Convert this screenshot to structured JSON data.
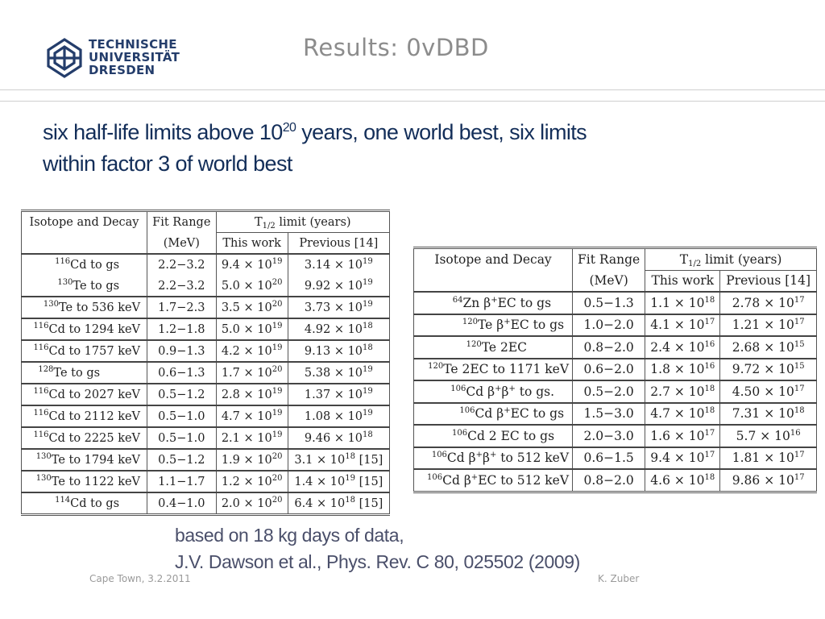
{
  "logo": {
    "lines": [
      "TECHNISCHE",
      "UNIVERSITÄT",
      "DRESDEN"
    ]
  },
  "title": "Results: 0vDBD",
  "headline": {
    "part1": "six half-life limits above 10",
    "exp": "20",
    "part2": " years, one world best, six limits",
    "line2": "within factor 3 of world best"
  },
  "table1": {
    "header": {
      "isotope": "Isotope and Decay",
      "fit": "Fit Range",
      "unit": "(MeV)",
      "limit_pre": "T",
      "limit_sub": "1/2",
      "limit_post": " limit (years)",
      "this": "This work",
      "prev": "Previous [14]"
    },
    "rows": [
      {
        "iso_mass": "116",
        "iso": "Cd to gs",
        "fit": "2.2−3.2",
        "tw_m": "9.4",
        "tw_e": "19",
        "pv_m": "3.14",
        "pv_e": "19",
        "pv_ref": ""
      },
      {
        "iso_mass": "130",
        "iso": "Te to gs",
        "fit": "2.2−3.2",
        "tw_m": "5.0",
        "tw_e": "20",
        "pv_m": "9.92",
        "pv_e": "19",
        "pv_ref": ""
      },
      {
        "iso_mass": "130",
        "iso": "Te to 536 keV",
        "fit": "1.7−2.3",
        "tw_m": "3.5",
        "tw_e": "20",
        "pv_m": "3.73",
        "pv_e": "19",
        "pv_ref": ""
      },
      {
        "iso_mass": "116",
        "iso": "Cd to 1294 keV",
        "fit": "1.2−1.8",
        "tw_m": "5.0",
        "tw_e": "19",
        "pv_m": "4.92",
        "pv_e": "18",
        "pv_ref": ""
      },
      {
        "iso_mass": "116",
        "iso": "Cd to 1757 keV",
        "fit": "0.9−1.3",
        "tw_m": "4.2",
        "tw_e": "19",
        "pv_m": "9.13",
        "pv_e": "18",
        "pv_ref": ""
      },
      {
        "iso_mass": "128",
        "iso": "Te to gs",
        "fit": "0.6−1.3",
        "tw_m": "1.7",
        "tw_e": "20",
        "pv_m": "5.38",
        "pv_e": "19",
        "pv_ref": ""
      },
      {
        "iso_mass": "116",
        "iso": "Cd to 2027 keV",
        "fit": "0.5−1.2",
        "tw_m": "2.8",
        "tw_e": "19",
        "pv_m": "1.37",
        "pv_e": "19",
        "pv_ref": ""
      },
      {
        "iso_mass": "116",
        "iso": "Cd to 2112 keV",
        "fit": "0.5−1.0",
        "tw_m": "4.7",
        "tw_e": "19",
        "pv_m": "1.08",
        "pv_e": "19",
        "pv_ref": ""
      },
      {
        "iso_mass": "116",
        "iso": "Cd to 2225 keV",
        "fit": "0.5−1.0",
        "tw_m": "2.1",
        "tw_e": "19",
        "pv_m": "9.46",
        "pv_e": "18",
        "pv_ref": ""
      },
      {
        "iso_mass": "130",
        "iso": "Te to 1794 keV",
        "fit": "0.5−1.2",
        "tw_m": "1.9",
        "tw_e": "20",
        "pv_m": "3.1",
        "pv_e": "18",
        "pv_ref": " [15]"
      },
      {
        "iso_mass": "130",
        "iso": "Te to 1122 keV",
        "fit": "1.1−1.7",
        "tw_m": "1.2",
        "tw_e": "20",
        "pv_m": "1.4",
        "pv_e": "19",
        "pv_ref": " [15]"
      },
      {
        "iso_mass": "114",
        "iso": "Cd to gs",
        "fit": "0.4−1.0",
        "tw_m": "2.0",
        "tw_e": "20",
        "pv_m": "6.4",
        "pv_e": "18",
        "pv_ref": " [15]"
      }
    ]
  },
  "table2": {
    "header": {
      "isotope": "Isotope and Decay",
      "fit": "Fit Range",
      "unit": "(MeV)",
      "limit_pre": "T",
      "limit_sub": "1/2",
      "limit_post": " limit (years)",
      "this": "This work",
      "prev": "Previous [14]"
    },
    "rows": [
      {
        "iso_mass": "64",
        "iso_pre": "Zn ",
        "iso_beta": "β",
        "iso_sup": "+",
        "iso_beta2": "",
        "iso_sup2": "",
        "iso_post": "EC to gs",
        "fit": "0.5−1.3",
        "tw_m": "1.1",
        "tw_e": "18",
        "pv_m": "2.78",
        "pv_e": "17"
      },
      {
        "iso_mass": "120",
        "iso_pre": "Te ",
        "iso_beta": "β",
        "iso_sup": "+",
        "iso_beta2": "",
        "iso_sup2": "",
        "iso_post": "EC to gs",
        "fit": "1.0−2.0",
        "tw_m": "4.1",
        "tw_e": "17",
        "pv_m": "1.21",
        "pv_e": "17"
      },
      {
        "iso_mass": "120",
        "iso_pre": "Te 2EC",
        "iso_beta": "",
        "iso_sup": "",
        "iso_beta2": "",
        "iso_sup2": "",
        "iso_post": "",
        "fit": "0.8−2.0",
        "tw_m": "2.4",
        "tw_e": "16",
        "pv_m": "2.68",
        "pv_e": "15"
      },
      {
        "iso_mass": "120",
        "iso_pre": "Te 2EC to 1171 keV",
        "iso_beta": "",
        "iso_sup": "",
        "iso_beta2": "",
        "iso_sup2": "",
        "iso_post": "",
        "fit": "0.6−2.0",
        "tw_m": "1.8",
        "tw_e": "16",
        "pv_m": "9.72",
        "pv_e": "15"
      },
      {
        "iso_mass": "106",
        "iso_pre": "Cd ",
        "iso_beta": "β",
        "iso_sup": "+",
        "iso_beta2": "β",
        "iso_sup2": "+",
        "iso_post": " to gs.",
        "fit": "0.5−2.0",
        "tw_m": "2.7",
        "tw_e": "18",
        "pv_m": "4.50",
        "pv_e": "17"
      },
      {
        "iso_mass": "106",
        "iso_pre": "Cd ",
        "iso_beta": "β",
        "iso_sup": "+",
        "iso_beta2": "",
        "iso_sup2": "",
        "iso_post": "EC to gs",
        "fit": "1.5−3.0",
        "tw_m": "4.7",
        "tw_e": "18",
        "pv_m": "7.31",
        "pv_e": "18"
      },
      {
        "iso_mass": "106",
        "iso_pre": "Cd 2 EC to gs",
        "iso_beta": "",
        "iso_sup": "",
        "iso_beta2": "",
        "iso_sup2": "",
        "iso_post": "",
        "fit": "2.0−3.0",
        "tw_m": "1.6",
        "tw_e": "17",
        "pv_m": "5.7",
        "pv_e": "16"
      },
      {
        "iso_mass": "106",
        "iso_pre": "Cd ",
        "iso_beta": "β",
        "iso_sup": "+",
        "iso_beta2": "β",
        "iso_sup2": "+",
        "iso_post": " to 512 keV",
        "fit": "0.6−1.5",
        "tw_m": "9.4",
        "tw_e": "17",
        "pv_m": "1.81",
        "pv_e": "17"
      },
      {
        "iso_mass": "106",
        "iso_pre": "Cd ",
        "iso_beta": "β",
        "iso_sup": "+",
        "iso_beta2": "",
        "iso_sup2": "",
        "iso_post": "EC to 512 keV",
        "fit": "0.8−2.0",
        "tw_m": "4.6",
        "tw_e": "18",
        "pv_m": "9.86",
        "pv_e": "17"
      }
    ]
  },
  "note": {
    "line1": "based on 18 kg days of data,",
    "line2": "J.V. Dawson et al., Phys. Rev. C 80, 025502 (2009)"
  },
  "footer": {
    "left": "Cape Town, 3.2.2011",
    "right": "K. Zuber"
  },
  "colors": {
    "headline": "#132e59",
    "logo": "#243d6b",
    "title": "#8c8c8c",
    "note": "#4a4f6a",
    "footer": "#9a9a9a"
  }
}
